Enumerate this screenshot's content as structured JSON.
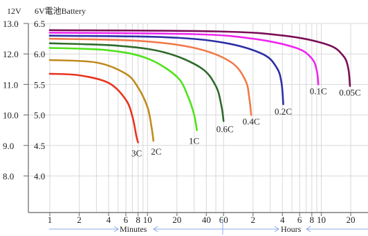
{
  "header": {
    "left_label": "12V",
    "right_label": "6V電池Battery"
  },
  "units": {
    "minutes": "Minutes",
    "hours": "Hours"
  },
  "colors": {
    "3C": "#e8341f",
    "2C": "#c08a1e",
    "1C": "#4fe21a",
    "0.6C": "#2e6a2a",
    "0.4C": "#f07a4a",
    "0.2C": "#2c2ea6",
    "0.1C": "#ee27ee",
    "0.05C": "#7a0d56"
  },
  "chart_data": {
    "type": "line",
    "title": "",
    "xlabel": "Minutes / Hours",
    "ylabel": "",
    "x_scale": "log",
    "x_ticks": [
      {
        "label": "1",
        "minutes": 1
      },
      {
        "label": "2",
        "minutes": 2
      },
      {
        "label": "4",
        "minutes": 4
      },
      {
        "label": "6",
        "minutes": 6
      },
      {
        "label": "8",
        "minutes": 8
      },
      {
        "label": "10",
        "minutes": 10
      },
      {
        "label": "20",
        "minutes": 20
      },
      {
        "label": "40",
        "minutes": 40
      },
      {
        "label": "60",
        "minutes": 60
      },
      {
        "label": "2",
        "minutes": 120
      },
      {
        "label": "4",
        "minutes": 240
      },
      {
        "label": "6",
        "minutes": 360
      },
      {
        "label": "8",
        "minutes": 480
      },
      {
        "label": "10",
        "minutes": 600
      },
      {
        "label": "20",
        "minutes": 1200
      }
    ],
    "xlim": [
      1,
      2000
    ],
    "ylim": [
      6.8,
      13.0
    ],
    "y_ticks_12v": [
      "13.0",
      "12.0",
      "11.0",
      "10.0",
      "9.0",
      "8.0"
    ],
    "y_ticks_6v": [
      "6.5",
      "6.0",
      "5.5",
      "5.0",
      "4.5",
      "4.0"
    ],
    "y_tick_values": [
      13.0,
      12.0,
      11.0,
      10.0,
      9.0,
      8.0
    ],
    "grid": true,
    "series": [
      {
        "name": "3C",
        "x": [
          1,
          2,
          4,
          6,
          7,
          7.7,
          8
        ],
        "y": [
          11.35,
          11.3,
          11.05,
          10.5,
          9.95,
          9.3,
          9.1
        ]
      },
      {
        "name": "2C",
        "x": [
          1,
          3,
          6,
          8,
          10,
          11,
          11.5
        ],
        "y": [
          11.8,
          11.72,
          11.35,
          10.9,
          10.25,
          9.6,
          9.15
        ]
      },
      {
        "name": "1C",
        "x": [
          1,
          4,
          10,
          20,
          26,
          30,
          32
        ],
        "y": [
          12.2,
          12.12,
          11.85,
          11.25,
          10.6,
          10.0,
          9.5
        ]
      },
      {
        "name": "0.6C",
        "x": [
          1,
          5,
          15,
          35,
          50,
          57,
          60
        ],
        "y": [
          12.35,
          12.27,
          12.05,
          11.55,
          10.95,
          10.3,
          9.8
        ]
      },
      {
        "name": "0.4C",
        "x": [
          1,
          8,
          30,
          70,
          100,
          110,
          115
        ],
        "y": [
          12.5,
          12.43,
          12.2,
          11.75,
          11.15,
          10.55,
          10.0
        ]
      },
      {
        "name": "0.2C",
        "x": [
          1,
          15,
          60,
          150,
          210,
          235,
          245
        ],
        "y": [
          12.6,
          12.55,
          12.37,
          12.0,
          11.55,
          11.05,
          10.35
        ]
      },
      {
        "name": "0.1C",
        "x": [
          1,
          30,
          120,
          330,
          480,
          540,
          560
        ],
        "y": [
          12.7,
          12.65,
          12.5,
          12.2,
          11.85,
          11.45,
          11.0
        ]
      },
      {
        "name": "0.05C",
        "x": [
          1,
          50,
          250,
          700,
          1000,
          1130,
          1180
        ],
        "y": [
          12.78,
          12.74,
          12.6,
          12.3,
          11.95,
          11.55,
          10.95
        ]
      }
    ],
    "curve_labels": [
      "3C",
      "2C",
      "1C",
      "0.6C",
      "0.4C",
      "0.2C",
      "0.1C",
      "0.05C"
    ]
  }
}
